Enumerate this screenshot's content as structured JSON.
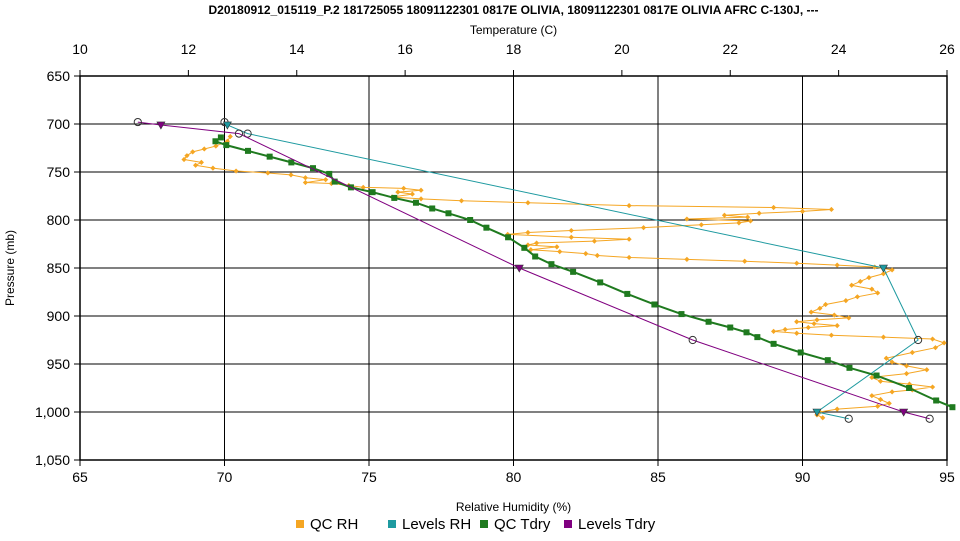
{
  "chart_data": {
    "type": "line",
    "title": "D20180912_015119_P.2 181725055 18091122301 0817E OLIVIA, 18091122301 0817E OLIVIA AFRC C-130J, ---",
    "top_axis_label": "Temperature (C)",
    "xlabel": "Relative Humidity (%)",
    "ylabel": "Pressure (mb)",
    "rh_range": [
      65,
      95
    ],
    "temp_range": [
      10,
      26
    ],
    "pressure_range": [
      650,
      1050
    ],
    "pressure_axis_inverted": true,
    "grid": true,
    "legend_position": "bottom",
    "rh_ticks": [
      "65",
      "70",
      "75",
      "80",
      "85",
      "90",
      "95"
    ],
    "temp_ticks": [
      "10",
      "12",
      "14",
      "16",
      "18",
      "20",
      "22",
      "24",
      "26"
    ],
    "pressure_ticks": [
      "650",
      "700",
      "750",
      "800",
      "850",
      "900",
      "950",
      "1,000",
      "1,050"
    ],
    "series": [
      {
        "name": "QC RH",
        "axis": "rh",
        "color": "#F5A623",
        "marker": "diamond",
        "points": [
          [
            70.2,
            713
          ],
          [
            70.1,
            718
          ],
          [
            69.7,
            723
          ],
          [
            69.3,
            726
          ],
          [
            68.9,
            729
          ],
          [
            68.7,
            733
          ],
          [
            68.6,
            737
          ],
          [
            69.2,
            740
          ],
          [
            69.0,
            743
          ],
          [
            69.6,
            746
          ],
          [
            70.4,
            749
          ],
          [
            71.5,
            751
          ],
          [
            72.3,
            753
          ],
          [
            72.8,
            756
          ],
          [
            73.5,
            758
          ],
          [
            72.8,
            761
          ],
          [
            73.7,
            762
          ],
          [
            74.3,
            764
          ],
          [
            74.8,
            766
          ],
          [
            76.2,
            767
          ],
          [
            76.8,
            769
          ],
          [
            76.0,
            771
          ],
          [
            76.5,
            773
          ],
          [
            75.8,
            776
          ],
          [
            76.8,
            778
          ],
          [
            78.2,
            780
          ],
          [
            80.5,
            782
          ],
          [
            84.0,
            785
          ],
          [
            89.0,
            787
          ],
          [
            91.0,
            789
          ],
          [
            90.0,
            791
          ],
          [
            88.5,
            793
          ],
          [
            87.3,
            795
          ],
          [
            88.1,
            797
          ],
          [
            86.0,
            799
          ],
          [
            88.2,
            801
          ],
          [
            87.8,
            803
          ],
          [
            86.5,
            805
          ],
          [
            84.5,
            808
          ],
          [
            82.0,
            811
          ],
          [
            80.5,
            813
          ],
          [
            79.8,
            815
          ],
          [
            82.0,
            818
          ],
          [
            84.0,
            820
          ],
          [
            82.8,
            822
          ],
          [
            80.8,
            824
          ],
          [
            80.5,
            826
          ],
          [
            81.5,
            828
          ],
          [
            80.6,
            831
          ],
          [
            81.6,
            833
          ],
          [
            82.5,
            835
          ],
          [
            82.9,
            837
          ],
          [
            84.0,
            839
          ],
          [
            86.0,
            841
          ],
          [
            88.0,
            843
          ],
          [
            89.8,
            845
          ],
          [
            91.2,
            847
          ],
          [
            92.5,
            849
          ],
          [
            93.1,
            852
          ],
          [
            92.8,
            856
          ],
          [
            92.3,
            860
          ],
          [
            92.0,
            864
          ],
          [
            91.7,
            868
          ],
          [
            92.4,
            872
          ],
          [
            92.6,
            876
          ],
          [
            91.9,
            880
          ],
          [
            91.5,
            884
          ],
          [
            90.8,
            888
          ],
          [
            90.6,
            892
          ],
          [
            90.3,
            896
          ],
          [
            91.1,
            899
          ],
          [
            91.6,
            902
          ],
          [
            90.5,
            904
          ],
          [
            89.8,
            906
          ],
          [
            90.4,
            908
          ],
          [
            91.2,
            910
          ],
          [
            90.2,
            912
          ],
          [
            89.4,
            914
          ],
          [
            89.0,
            916
          ],
          [
            89.8,
            918
          ],
          [
            91.0,
            920
          ],
          [
            92.8,
            922
          ],
          [
            94.5,
            924
          ],
          [
            94.9,
            928
          ],
          [
            94.6,
            933
          ],
          [
            93.8,
            938
          ],
          [
            92.9,
            944
          ],
          [
            93.1,
            948
          ],
          [
            93.6,
            952
          ],
          [
            94.3,
            956
          ],
          [
            93.6,
            960
          ],
          [
            92.4,
            964
          ],
          [
            92.7,
            968
          ],
          [
            93.7,
            971
          ],
          [
            94.5,
            974
          ],
          [
            93.8,
            977
          ],
          [
            93.1,
            979
          ],
          [
            92.4,
            983
          ],
          [
            92.7,
            987
          ],
          [
            93.0,
            991
          ],
          [
            92.6,
            994
          ],
          [
            91.2,
            997
          ],
          [
            90.6,
            1000
          ],
          [
            90.5,
            1003
          ],
          [
            90.7,
            1006
          ]
        ]
      },
      {
        "name": "Levels RH",
        "axis": "rh",
        "color": "#1E9AA0",
        "marker": "triangle-circle",
        "points": [
          [
            70.0,
            698
          ],
          [
            70.1,
            701
          ],
          [
            70.8,
            710
          ],
          [
            92.8,
            850
          ],
          [
            94.0,
            925
          ],
          [
            90.5,
            1000
          ],
          [
            91.6,
            1007
          ]
        ]
      },
      {
        "name": "QC Tdry",
        "axis": "temp",
        "color": "#1F7A1F",
        "marker": "square",
        "points": [
          [
            12.6,
            714
          ],
          [
            12.5,
            718
          ],
          [
            12.7,
            722
          ],
          [
            13.1,
            728
          ],
          [
            13.5,
            734
          ],
          [
            13.9,
            740
          ],
          [
            14.3,
            746
          ],
          [
            14.6,
            752
          ],
          [
            14.7,
            760
          ],
          [
            15.0,
            766
          ],
          [
            15.4,
            771
          ],
          [
            15.8,
            777
          ],
          [
            16.2,
            782
          ],
          [
            16.5,
            788
          ],
          [
            16.8,
            793
          ],
          [
            17.2,
            800
          ],
          [
            17.5,
            808
          ],
          [
            17.9,
            818
          ],
          [
            18.2,
            829
          ],
          [
            18.4,
            838
          ],
          [
            18.7,
            846
          ],
          [
            19.1,
            854
          ],
          [
            19.6,
            865
          ],
          [
            20.1,
            877
          ],
          [
            20.6,
            888
          ],
          [
            21.1,
            898
          ],
          [
            21.6,
            906
          ],
          [
            22.0,
            912
          ],
          [
            22.3,
            917
          ],
          [
            22.5,
            922
          ],
          [
            22.8,
            929
          ],
          [
            23.3,
            938
          ],
          [
            23.8,
            946
          ],
          [
            24.2,
            954
          ],
          [
            24.7,
            962
          ],
          [
            25.3,
            975
          ],
          [
            25.8,
            988
          ],
          [
            26.1,
            995
          ]
        ]
      },
      {
        "name": "Levels Tdry",
        "axis": "rh",
        "color": "#800080",
        "marker": "triangle-circle",
        "points": [
          [
            67.0,
            698
          ],
          [
            67.8,
            701
          ],
          [
            70.5,
            710
          ],
          [
            80.2,
            850
          ],
          [
            86.2,
            925
          ],
          [
            93.5,
            1000
          ],
          [
            94.4,
            1007
          ]
        ]
      }
    ]
  }
}
